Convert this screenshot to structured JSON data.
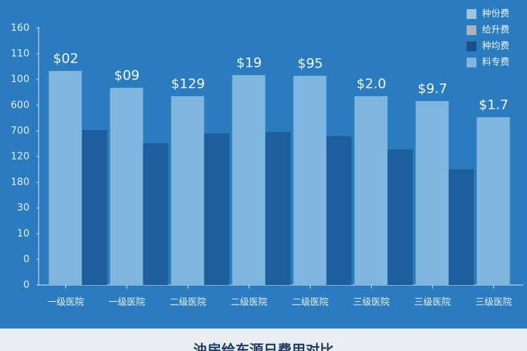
{
  "chart_data": {
    "type": "bar",
    "title": "浊房给东源日费用对比",
    "categories": [
      "一级医院",
      "一级医院",
      "二级医院",
      "二级医院",
      "二级医院",
      "三级医院",
      "三级医院",
      "三级医院"
    ],
    "series": [
      {
        "color": "#7fb6df",
        "values": [
          133.3,
          122.8,
          117.6,
          130.7,
          130.3,
          117.6,
          114.5,
          104.5
        ]
      },
      {
        "color": "#1c5f9c",
        "values": [
          96.6,
          88.3,
          94.4,
          95.3,
          92.7,
          84.4,
          72.1,
          null
        ]
      }
    ],
    "annotations": [
      "$02",
      "$09",
      "$129",
      "$19",
      "$95",
      "$2.0",
      "$9.7",
      "$1.7"
    ],
    "legend": [
      {
        "label": "种份费",
        "color": "#9cc3e2"
      },
      {
        "label": "给升费",
        "color": "#a7b4c0"
      },
      {
        "label": "种均费",
        "color": "#1c4f86"
      },
      {
        "label": "料专费",
        "color": "#7fb6df"
      }
    ],
    "ylim": [
      0,
      160
    ],
    "yticks": [
      {
        "value": 0,
        "label": "0"
      },
      {
        "value": 16,
        "label": "0"
      },
      {
        "value": 32,
        "label": "10"
      },
      {
        "value": 48,
        "label": "30"
      },
      {
        "value": 64,
        "label": "180"
      },
      {
        "value": 80,
        "label": "120"
      },
      {
        "value": 96,
        "label": "700"
      },
      {
        "value": 112,
        "label": "600"
      },
      {
        "value": 128,
        "label": "100"
      },
      {
        "value": 144,
        "label": "110"
      },
      160
    ]
  }
}
